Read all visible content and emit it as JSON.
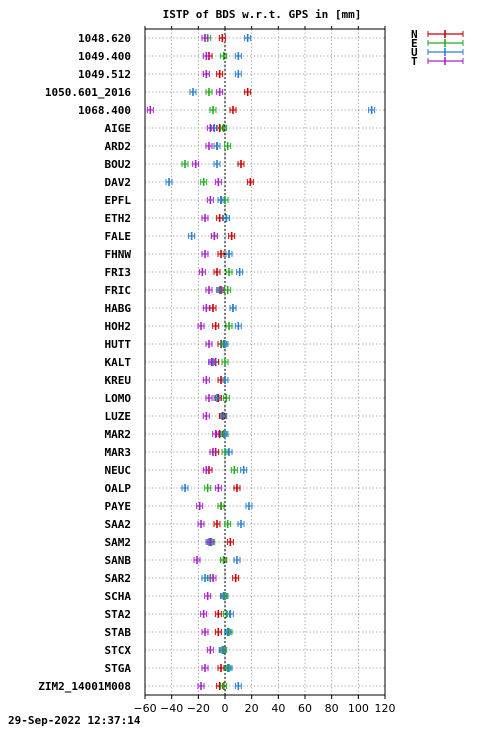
{
  "chart_data": {
    "type": "scatter",
    "title": "ISTP of BDS w.r.t. GPS in [mm]",
    "xlim": [
      -60,
      120
    ],
    "xticks": [
      -60,
      -40,
      -20,
      0,
      20,
      40,
      60,
      80,
      100,
      120
    ],
    "grid": true,
    "legend_position": "top-right, outside plot",
    "series_colors": {
      "N": "#cc0000",
      "E": "#22aa22",
      "U": "#2a7fd4",
      "T": "#aa22cc"
    },
    "series": [
      {
        "name": "N",
        "color": "#cc0000"
      },
      {
        "name": "E",
        "color": "#22aa22"
      },
      {
        "name": "U",
        "color": "#2a7fd4"
      },
      {
        "name": "T",
        "color": "#aa22cc"
      }
    ],
    "stations": [
      {
        "name": "1048.620",
        "N": -2,
        "E": -13,
        "U": 17,
        "T": -15
      },
      {
        "name": "1049.400",
        "N": -12,
        "E": -1,
        "U": 10,
        "T": -14
      },
      {
        "name": "1049.512",
        "N": -4,
        "E": -14,
        "U": 10,
        "T": -14
      },
      {
        "name": "1050.601_2016",
        "N": 17,
        "E": -12,
        "U": -24,
        "T": -4
      },
      {
        "name": "1068.400",
        "N": 6,
        "E": -9,
        "U": 110,
        "T": -56
      },
      {
        "name": "AIGE",
        "N": -4,
        "E": -1,
        "U": -8,
        "T": -11
      },
      {
        "name": "ARD2",
        "N": -6,
        "E": 2,
        "U": -6,
        "T": -12
      },
      {
        "name": "BOU2",
        "N": 12,
        "E": -30,
        "U": -6,
        "T": -22
      },
      {
        "name": "DAV2",
        "N": 19,
        "E": -16,
        "U": -42,
        "T": -5
      },
      {
        "name": "EPFL",
        "N": -3,
        "E": 0,
        "U": -3,
        "T": -11
      },
      {
        "name": "ETH2",
        "N": -4,
        "E": 1,
        "U": 1,
        "T": -15
      },
      {
        "name": "FALE",
        "N": 5,
        "E": -8,
        "U": -25,
        "T": -8
      },
      {
        "name": "FHNW",
        "N": -3,
        "E": 3,
        "U": 3,
        "T": -15
      },
      {
        "name": "FRI3",
        "N": -6,
        "E": 3,
        "U": 11,
        "T": -17
      },
      {
        "name": "FRIC",
        "N": -3,
        "E": 2,
        "U": -4,
        "T": -12
      },
      {
        "name": "HABG",
        "N": -9,
        "E": 6,
        "U": 6,
        "T": -14
      },
      {
        "name": "HOH2",
        "N": -7,
        "E": 3,
        "U": 10,
        "T": -18
      },
      {
        "name": "HUTT",
        "N": -3,
        "E": -1,
        "U": 0,
        "T": -12
      },
      {
        "name": "KALT",
        "N": -7,
        "E": 0,
        "U": -9,
        "T": -10
      },
      {
        "name": "KREU",
        "N": -3,
        "E": 0,
        "U": 0,
        "T": -14
      },
      {
        "name": "LOMO",
        "N": -5,
        "E": 1,
        "U": -6,
        "T": -12
      },
      {
        "name": "LUZE",
        "N": -2,
        "E": -1,
        "U": -1,
        "T": -14
      },
      {
        "name": "MAR2",
        "N": -4,
        "E": -1,
        "U": 0,
        "T": -7
      },
      {
        "name": "MAR3",
        "N": -7,
        "E": 0,
        "U": 3,
        "T": -9
      },
      {
        "name": "NEUC",
        "N": -12,
        "E": 7,
        "U": 14,
        "T": -14
      },
      {
        "name": "OALP",
        "N": 9,
        "E": -13,
        "U": -30,
        "T": -5
      },
      {
        "name": "PAYE",
        "N": -3,
        "E": -3,
        "U": 18,
        "T": -19
      },
      {
        "name": "SAA2",
        "N": -6,
        "E": 2,
        "U": 12,
        "T": -18
      },
      {
        "name": "SAM2",
        "N": 4,
        "E": -10,
        "U": -12,
        "T": -11
      },
      {
        "name": "SANB",
        "N": -1,
        "E": -1,
        "U": 9,
        "T": -21
      },
      {
        "name": "SAR2",
        "N": 8,
        "E": -11,
        "U": -15,
        "T": -9
      },
      {
        "name": "SCHA",
        "N": -1,
        "E": 0,
        "U": -1,
        "T": -13
      },
      {
        "name": "STA2",
        "N": -5,
        "E": 1,
        "U": 4,
        "T": -16
      },
      {
        "name": "STAB",
        "N": -5,
        "E": 3,
        "U": 2,
        "T": -15
      },
      {
        "name": "STCX",
        "N": -2,
        "E": -1,
        "U": -2,
        "T": -11
      },
      {
        "name": "STGA",
        "N": -3,
        "E": 2,
        "U": 3,
        "T": -15
      },
      {
        "name": "ZIM2_14001M008",
        "N": -4,
        "E": -1,
        "U": 10,
        "T": -18
      }
    ]
  },
  "footer": {
    "timestamp": "29-Sep-2022 12:37:14"
  }
}
